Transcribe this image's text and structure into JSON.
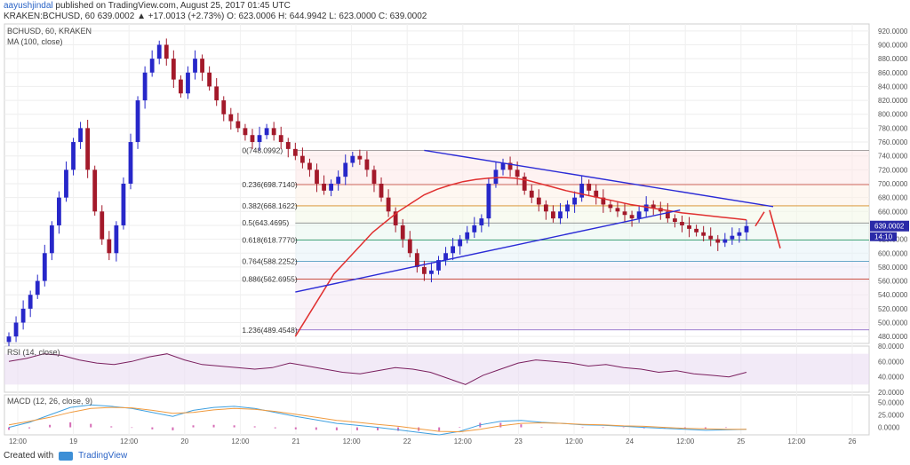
{
  "header": {
    "author": "aayushjindal",
    "published_text": "published on TradingView.com, August 25, 2017 01:45 UTC",
    "ohlc_line": "KRAKEN:BCHUSD, 60  639.0002 ▲ +17.0013 (+2.73%)  O: 623.0006  H: 644.9942  L: 623.0000  C: 639.0002"
  },
  "footer": {
    "created_with": "Created with",
    "brand": "TradingView"
  },
  "colors": {
    "up": "#2727c9",
    "down": "#a3192a",
    "ma": "#e03030",
    "trend": "#2b2bd6",
    "rsi": "#7a1f5e",
    "rsi_band": "#eadcf2",
    "macd": "#3fa0e0",
    "signal": "#f09a3e",
    "hist": "#d66bb5"
  },
  "chart_data": [
    {
      "type": "candlestick",
      "title": "BCHUSD, 60, KRAKEN",
      "subtitle": "MA (100, close)",
      "symbol": "KRAKEN:BCHUSD",
      "interval": "60",
      "ylim": [
        470,
        930
      ],
      "y_ticks": [
        "920.0000",
        "900.0000",
        "880.0000",
        "860.0000",
        "840.0000",
        "820.0000",
        "800.0000",
        "780.0000",
        "760.0000",
        "740.0000",
        "720.0000",
        "700.0000",
        "680.0000",
        "660.0000",
        "640.0000",
        "620.0000",
        "600.0000",
        "580.0000",
        "560.0000",
        "540.0000",
        "520.0000",
        "500.0000",
        "480.0000"
      ],
      "current_price_label": "639.0002",
      "countdown_label": "14:10",
      "x_ticks": [
        "12:00",
        "19",
        "12:00",
        "20",
        "12:00",
        "21",
        "12:00",
        "22",
        "12:00",
        "23",
        "12:00",
        "24",
        "12:00",
        "25",
        "12:00",
        "26"
      ],
      "series": [
        {
          "name": "BCHUSD",
          "closes": [
            480,
            500,
            520,
            540,
            560,
            600,
            640,
            680,
            720,
            760,
            780,
            720,
            660,
            620,
            600,
            640,
            700,
            760,
            820,
            860,
            880,
            900,
            880,
            850,
            830,
            860,
            880,
            860,
            840,
            820,
            800,
            790,
            780,
            770,
            760,
            770,
            780,
            770,
            760,
            750,
            740,
            730,
            720,
            700,
            690,
            700,
            710,
            730,
            740,
            735,
            720,
            700,
            680,
            660,
            640,
            620,
            600,
            580,
            570,
            575,
            590,
            600,
            610,
            620,
            630,
            640,
            650,
            700,
            720,
            730,
            720,
            710,
            690,
            680,
            670,
            660,
            650,
            660,
            670,
            680,
            700,
            690,
            680,
            670,
            665,
            660,
            655,
            650,
            660,
            670,
            665,
            660,
            650,
            645,
            640,
            635,
            630,
            625,
            620,
            615,
            620,
            625,
            630,
            639
          ]
        },
        {
          "name": "MA (100, close)",
          "x_index_range": [
            40,
            103
          ],
          "values": [
            480,
            510,
            540,
            570,
            590,
            610,
            630,
            645,
            660,
            672,
            684,
            692,
            698,
            703,
            706,
            708,
            709,
            708,
            705,
            700,
            695,
            690,
            686,
            682,
            678,
            674,
            670,
            667,
            664,
            661,
            658,
            656,
            654,
            652,
            650,
            648
          ]
        }
      ],
      "fib_levels": [
        {
          "label": "0(748.0992)",
          "value": 748.0992
        },
        {
          "label": "0.236(698.7140)",
          "value": 698.714
        },
        {
          "label": "0.382(668.1622)",
          "value": 668.1622
        },
        {
          "label": "0.5(643.4695)",
          "value": 643.4695
        },
        {
          "label": "0.618(618.7770)",
          "value": 618.777
        },
        {
          "label": "0.764(588.2252)",
          "value": 588.2252
        },
        {
          "label": "0.886(562.6955)",
          "value": 562.6955
        },
        {
          "label": "1.236(489.4548)",
          "value": 489.4548
        }
      ],
      "trendlines": [
        {
          "name": "descending resistance",
          "from": [
            58,
            748
          ],
          "to": [
            103,
            667
          ]
        },
        {
          "name": "ascending support",
          "from": [
            40,
            544
          ],
          "to": [
            90,
            662
          ]
        }
      ]
    },
    {
      "type": "line",
      "title": "RSI (14, close)",
      "ylim": [
        20,
        80
      ],
      "y_ticks": [
        "80.0000",
        "60.0000",
        "40.0000",
        "20.0000"
      ],
      "series": [
        {
          "name": "RSI",
          "values": [
            60,
            64,
            70,
            68,
            62,
            58,
            56,
            60,
            66,
            70,
            62,
            56,
            54,
            52,
            50,
            52,
            58,
            54,
            50,
            46,
            44,
            48,
            52,
            50,
            46,
            38,
            30,
            42,
            50,
            58,
            62,
            60,
            58,
            54,
            56,
            52,
            50,
            46,
            48,
            44,
            42,
            40,
            46
          ]
        }
      ]
    },
    {
      "type": "line",
      "title": "MACD (12, 26, close, 9)",
      "ylim": [
        -15,
        65
      ],
      "y_ticks": [
        "50.0000",
        "25.0000",
        "0.0000"
      ],
      "series": [
        {
          "name": "MACD",
          "values": [
            0,
            10,
            25,
            40,
            45,
            42,
            38,
            30,
            22,
            34,
            40,
            42,
            38,
            30,
            22,
            15,
            8,
            4,
            0,
            -5,
            -10,
            -15,
            -8,
            5,
            12,
            14,
            10,
            8,
            5,
            4,
            2,
            0,
            -2,
            -4,
            -6,
            -5,
            -4
          ]
        },
        {
          "name": "signal",
          "values": [
            5,
            12,
            20,
            30,
            38,
            40,
            39,
            34,
            28,
            30,
            35,
            38,
            36,
            32,
            26,
            20,
            14,
            10,
            6,
            2,
            -3,
            -8,
            -9,
            -4,
            3,
            8,
            9,
            8,
            6,
            5,
            3,
            2,
            0,
            -2,
            -3,
            -4,
            -4
          ]
        }
      ]
    }
  ]
}
